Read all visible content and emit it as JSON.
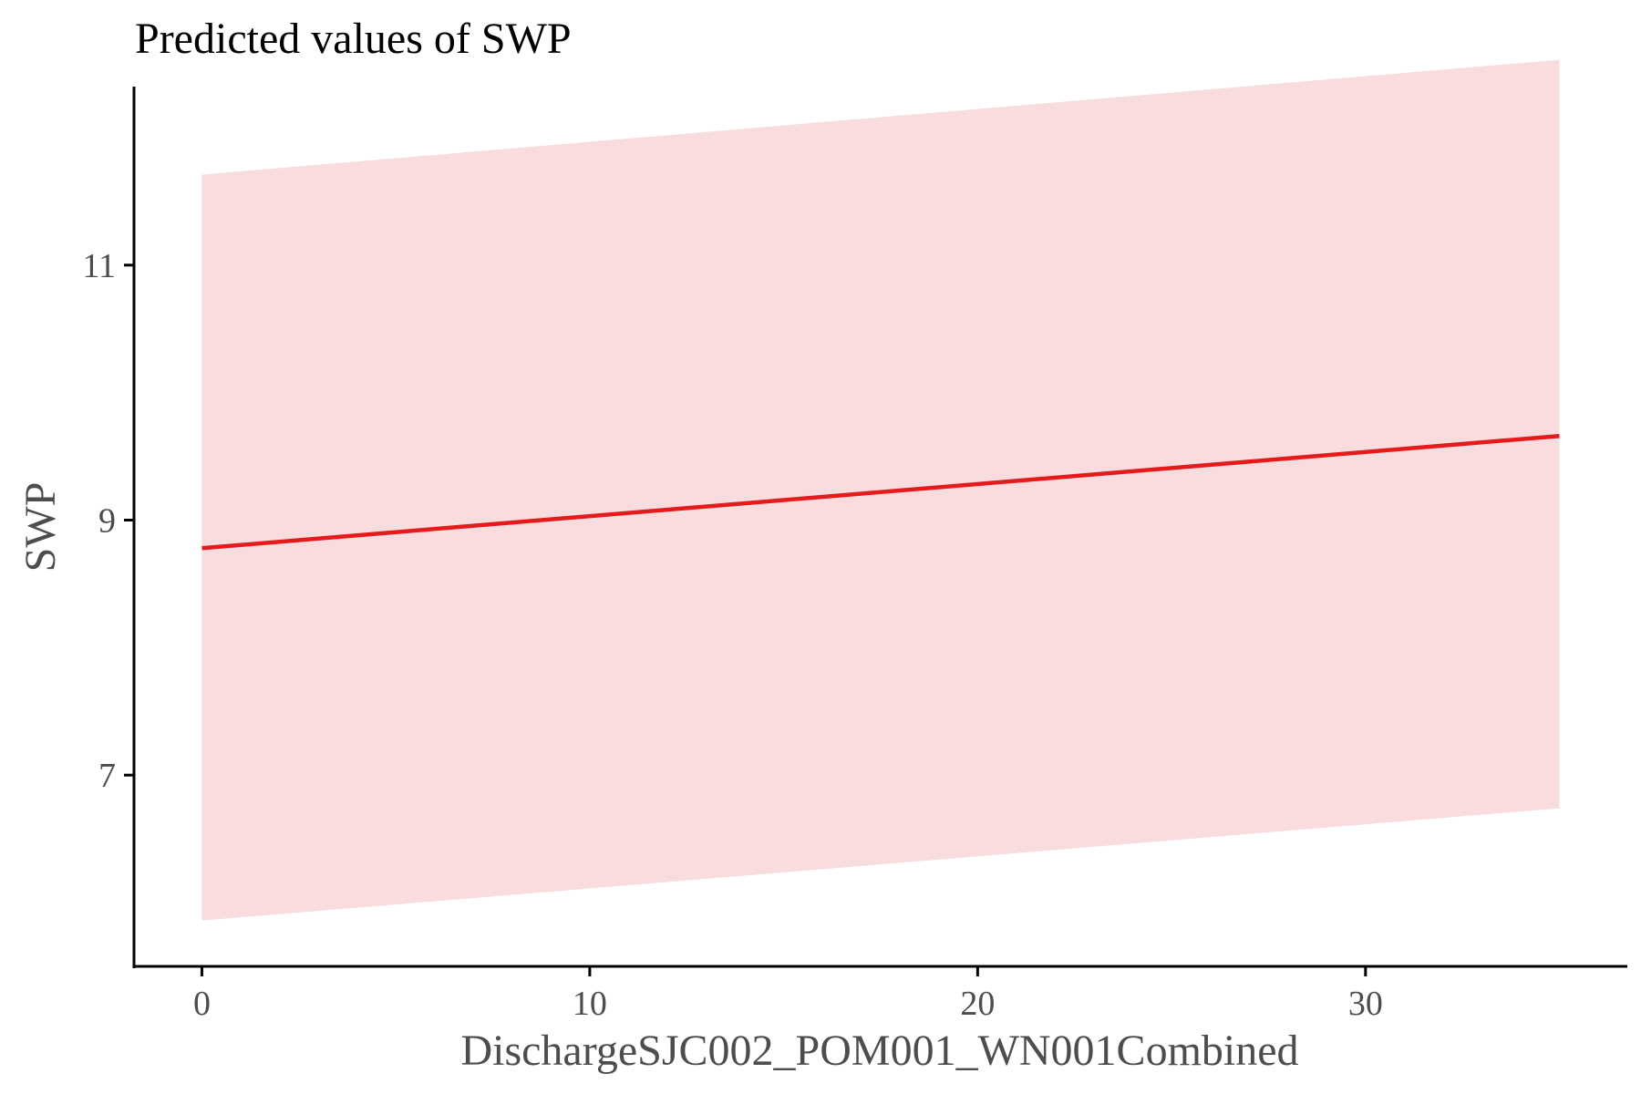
{
  "chart_data": {
    "type": "line",
    "title": "Predicted values of SWP",
    "xlabel": "DischargeSJC002_POM001_WN001Combined",
    "ylabel": "SWP",
    "xlim": [
      -1.75,
      36.75
    ],
    "ylim": [
      5.5,
      12.4
    ],
    "x_ticks": [
      0,
      10,
      20,
      30
    ],
    "x_tick_labels": [
      "0",
      "10",
      "20",
      "30"
    ],
    "y_ticks": [
      7,
      9,
      11
    ],
    "y_tick_labels": [
      "7",
      "9",
      "11"
    ],
    "grid": false,
    "legend": "none",
    "series": [
      {
        "x": [
          0,
          35
        ],
        "values": [
          8.78,
          9.66
        ],
        "lower": [
          5.86,
          6.74
        ],
        "upper": [
          11.71,
          12.61
        ],
        "color": "#e41a1c",
        "ribbon_color": "#f9dcdd"
      }
    ]
  }
}
